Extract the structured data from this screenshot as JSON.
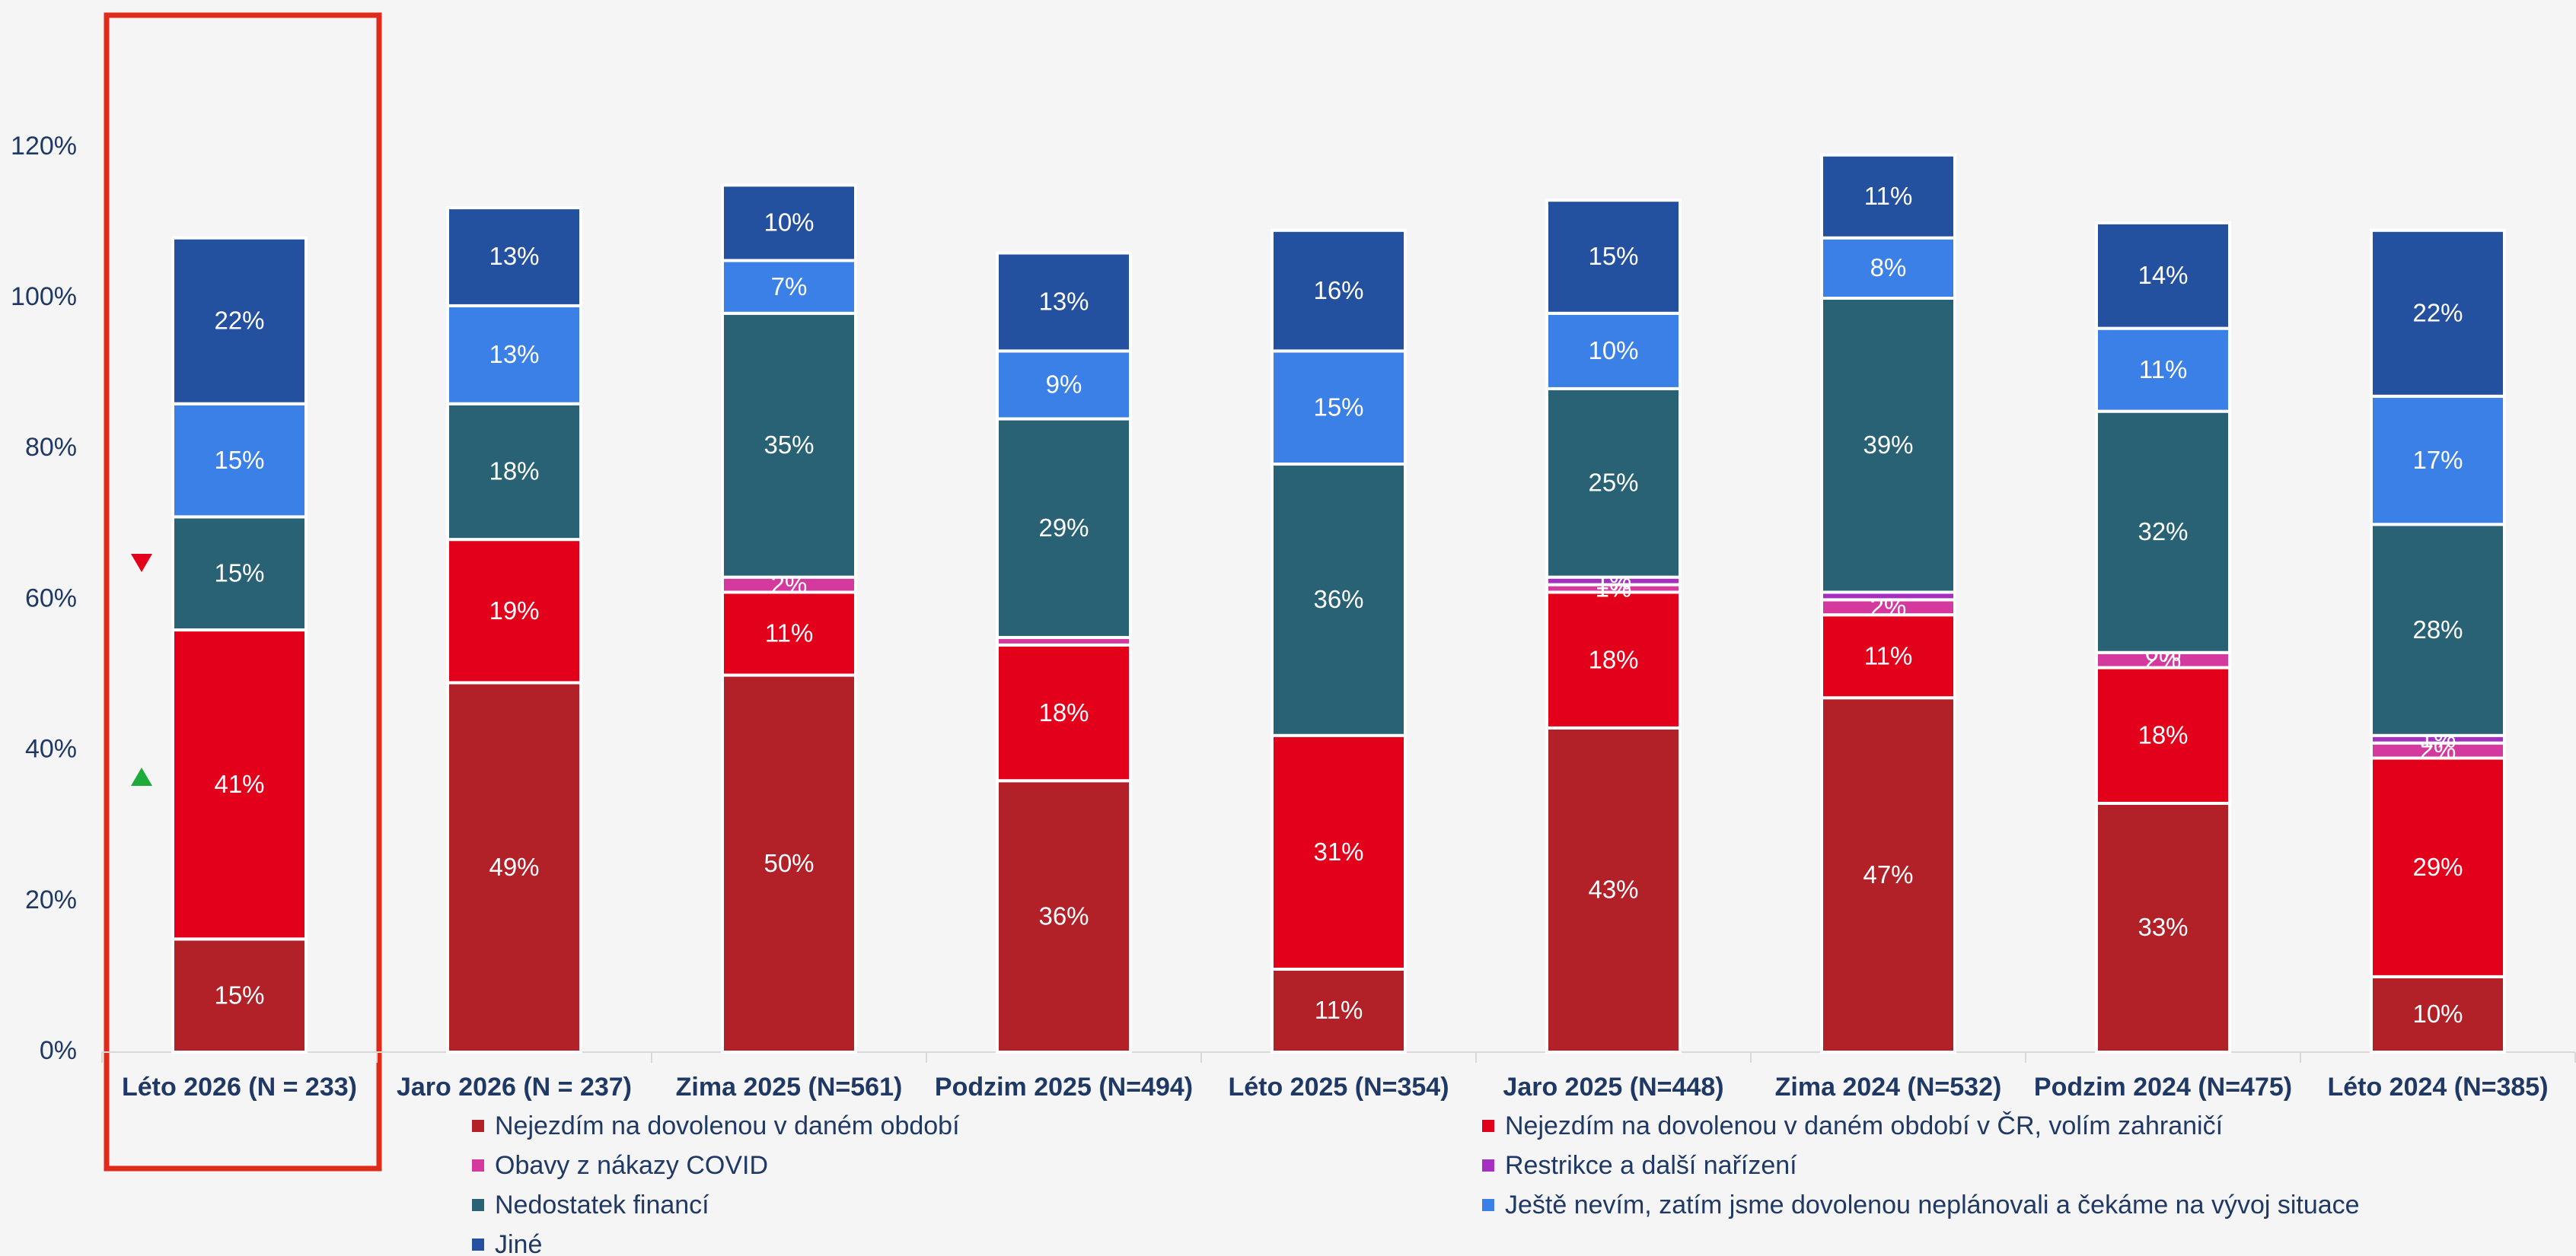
{
  "chart_data": {
    "type": "stacked-bar",
    "categories": [
      "Léto 2026 (N = 233)",
      "Jaro 2026 (N = 237)",
      "Zima 2025 (N=561)",
      "Podzim 2025 (N=494)",
      "Léto 2025 (N=354)",
      "Jaro 2025 (N=448)",
      "Zima 2024 (N=532)",
      "Podzim 2024 (N=475)",
      "Léto 2024 (N=385)"
    ],
    "series": [
      {
        "name": "Nejezdím na dovolenou v daném období",
        "color": "#b22028",
        "values": [
          15,
          49,
          50,
          36,
          11,
          43,
          47,
          33,
          10
        ],
        "value_labels": [
          "15%",
          "49%",
          "50%",
          "36%",
          "11%",
          "43%",
          "47%",
          "33%",
          "10%"
        ]
      },
      {
        "name": "Nejezdím na dovolenou v daném období v ČR, volím zahraničí",
        "color": "#e3001b",
        "values": [
          41,
          19,
          11,
          18,
          31,
          18,
          11,
          18,
          29
        ],
        "value_labels": [
          "41%",
          "19%",
          "11%",
          "18%",
          "31%",
          "18%",
          "11%",
          "18%",
          "29%"
        ]
      },
      {
        "name": "Obavy z nákazy COVID",
        "color": "#d4399e",
        "values": [
          null,
          null,
          2,
          1,
          null,
          1,
          2,
          2,
          2
        ],
        "value_labels": [
          null,
          null,
          "2%",
          null,
          null,
          "1%",
          "2%",
          "2%",
          "2%"
        ]
      },
      {
        "name": "Restrikce a další nařízení",
        "color": "#a42fc0",
        "values": [
          null,
          null,
          null,
          null,
          null,
          1,
          1,
          0,
          1
        ],
        "value_labels": [
          null,
          null,
          null,
          null,
          null,
          "1%",
          null,
          "0%",
          "1%"
        ]
      },
      {
        "name": "Nedostatek financí",
        "color": "#286274",
        "values": [
          15,
          18,
          35,
          29,
          36,
          25,
          39,
          32,
          28
        ],
        "value_labels": [
          "15%",
          "18%",
          "35%",
          "29%",
          "36%",
          "25%",
          "39%",
          "32%",
          "28%"
        ]
      },
      {
        "name": "Ještě nevím, zatím jsme dovolenou neplánovali a čekáme na vývoj situace",
        "color": "#3b80e6",
        "values": [
          15,
          13,
          7,
          9,
          15,
          10,
          8,
          11,
          17
        ],
        "value_labels": [
          "15%",
          "13%",
          "7%",
          "9%",
          "15%",
          "10%",
          "8%",
          "11%",
          "17%"
        ]
      },
      {
        "name": "Jiné",
        "color": "#2450a0",
        "values": [
          22,
          13,
          10,
          13,
          16,
          15,
          11,
          14,
          22
        ],
        "value_labels": [
          "22%",
          "13%",
          "10%",
          "13%",
          "16%",
          "15%",
          "11%",
          "14%",
          "22%"
        ]
      }
    ],
    "ylim": [
      0,
      130
    ],
    "yticks": [
      {
        "value": 0,
        "label": "0%"
      },
      {
        "value": 20,
        "label": "20%"
      },
      {
        "value": 40,
        "label": "40%"
      },
      {
        "value": 60,
        "label": "60%"
      },
      {
        "value": 80,
        "label": "80%"
      },
      {
        "value": 100,
        "label": "100%"
      },
      {
        "value": 120,
        "label": "120%"
      }
    ]
  }
}
